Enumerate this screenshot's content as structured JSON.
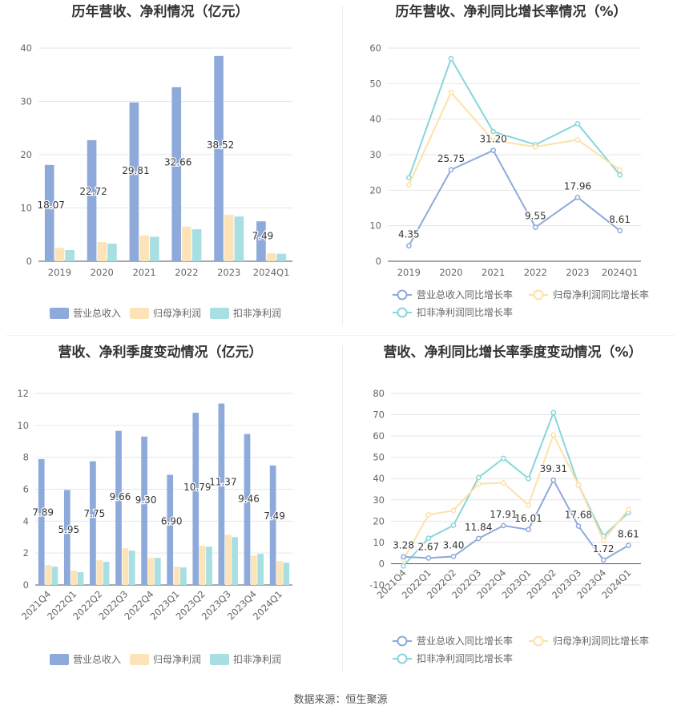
{
  "colors": {
    "revenue": "#8eaadb",
    "parent_profit": "#fde4b8",
    "deducted_profit": "#a8dfe3",
    "revenue_line": "#8eaadb",
    "parent_line": "#fde1a6",
    "deducted_line": "#88d6db",
    "grid": "#e6e6e6",
    "axis_text": "#666666",
    "title": "#333333"
  },
  "source_text": "数据来源：恒生聚源",
  "chart_data": [
    {
      "id": "annual_values",
      "type": "bar",
      "title": "历年营收、净利情况（亿元）",
      "categories": [
        "2019",
        "2020",
        "2021",
        "2022",
        "2023",
        "2024Q1"
      ],
      "ylim": [
        0,
        40
      ],
      "yticks": [
        0,
        10,
        20,
        30,
        40
      ],
      "grid": true,
      "legend_position": "bottom",
      "series": [
        {
          "name": "营业总收入",
          "values": [
            18.07,
            22.72,
            29.81,
            32.66,
            38.52,
            7.49
          ],
          "labels": [
            "18.07",
            "22.72",
            "29.81",
            "32.66",
            "38.52",
            "7.49"
          ]
        },
        {
          "name": "归母净利润",
          "values": [
            2.5,
            3.6,
            4.8,
            6.5,
            8.7,
            1.5
          ]
        },
        {
          "name": "扣非净利润",
          "values": [
            2.1,
            3.3,
            4.6,
            6.0,
            8.4,
            1.4
          ]
        }
      ]
    },
    {
      "id": "annual_growth",
      "type": "line",
      "title": "历年营收、净利同比增长率情况（%）",
      "categories": [
        "2019",
        "2020",
        "2021",
        "2022",
        "2023",
        "2024Q1"
      ],
      "ylim": [
        0,
        60
      ],
      "yticks": [
        0,
        10,
        20,
        30,
        40,
        50,
        60
      ],
      "grid": true,
      "legend_position": "bottom",
      "series": [
        {
          "name": "营业总收入同比增长率",
          "values": [
            4.35,
            25.75,
            31.2,
            9.55,
            17.96,
            8.61
          ],
          "labels": [
            "4.35",
            "25.75",
            "31.20",
            "9.55",
            "17.96",
            "8.61"
          ]
        },
        {
          "name": "归母净利润同比增长率",
          "values": [
            21.5,
            47.5,
            34.0,
            32.2,
            34.2,
            25.7
          ]
        },
        {
          "name": "扣非净利润同比增长率",
          "values": [
            23.5,
            57.0,
            36.5,
            32.8,
            38.7,
            24.3
          ]
        }
      ]
    },
    {
      "id": "quarterly_values",
      "type": "bar",
      "title": "营收、净利季度变动情况（亿元）",
      "categories": [
        "2021Q4",
        "2022Q1",
        "2022Q2",
        "2022Q3",
        "2022Q4",
        "2023Q1",
        "2023Q2",
        "2023Q3",
        "2023Q4",
        "2024Q1"
      ],
      "ylim": [
        0,
        12
      ],
      "yticks": [
        0,
        2,
        4,
        6,
        8,
        10,
        12
      ],
      "grid": true,
      "legend_position": "bottom",
      "series": [
        {
          "name": "营业总收入",
          "values": [
            7.89,
            5.95,
            7.75,
            9.66,
            9.3,
            6.9,
            10.79,
            11.37,
            9.46,
            7.49
          ],
          "labels": [
            "7.89",
            "5.95",
            "7.75",
            "9.66",
            "9.30",
            "6.90",
            "10.79",
            "11.37",
            "9.46",
            "7.49"
          ]
        },
        {
          "name": "归母净利润",
          "values": [
            1.25,
            0.9,
            1.55,
            2.3,
            1.7,
            1.15,
            2.45,
            3.15,
            1.85,
            1.5
          ]
        },
        {
          "name": "扣非净利润",
          "values": [
            1.15,
            0.8,
            1.45,
            2.15,
            1.7,
            1.1,
            2.4,
            3.0,
            1.95,
            1.4
          ]
        }
      ]
    },
    {
      "id": "quarterly_growth",
      "type": "line",
      "title": "营收、净利同比增长率季度变动情况（%）",
      "categories": [
        "2021Q4",
        "2022Q1",
        "2022Q2",
        "2022Q3",
        "2022Q4",
        "2023Q1",
        "2023Q2",
        "2023Q3",
        "2023Q4",
        "2024Q1"
      ],
      "ylim": [
        -10,
        80
      ],
      "yticks": [
        -10,
        0,
        10,
        20,
        30,
        40,
        50,
        60,
        70,
        80
      ],
      "grid": true,
      "legend_position": "bottom",
      "series": [
        {
          "name": "营业总收入同比增长率",
          "values": [
            3.28,
            2.67,
            3.4,
            11.84,
            17.91,
            16.01,
            39.31,
            17.68,
            1.72,
            8.61
          ],
          "labels": [
            "3.28",
            "2.67",
            "3.40",
            "11.84",
            "17.91",
            "16.01",
            "39.31",
            "17.68",
            "1.72",
            "8.61"
          ]
        },
        {
          "name": "归母净利润同比增长率",
          "values": [
            2.0,
            23.0,
            25.0,
            37.5,
            38.0,
            27.5,
            60.5,
            37.0,
            11.0,
            25.5
          ]
        },
        {
          "name": "扣非净利润同比增长率",
          "values": [
            -1.0,
            12.0,
            18.0,
            40.5,
            49.5,
            40.0,
            71.0,
            37.0,
            13.0,
            24.0
          ]
        }
      ]
    }
  ]
}
